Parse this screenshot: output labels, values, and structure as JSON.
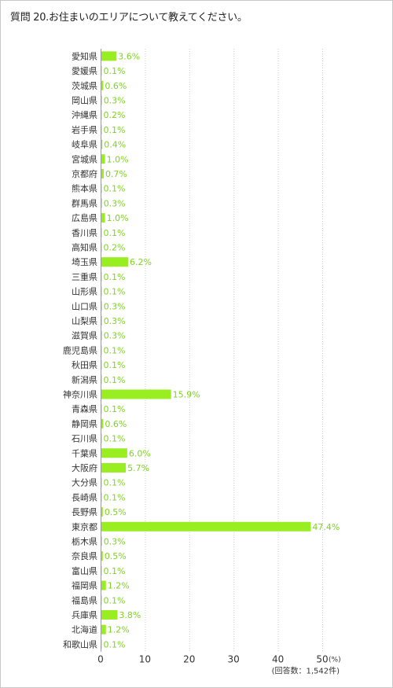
{
  "question": "質問 20.お住まいのエリアについて教えてください。",
  "colors": {
    "bar": "#99ee22",
    "value_label": "#7ed321",
    "grid": "#cccccc",
    "axis": "#999999"
  },
  "chart_data": {
    "type": "bar",
    "orientation": "horizontal",
    "title": "質問 20.お住まいのエリアについて教えてください。",
    "categories": [
      "愛知県",
      "愛媛県",
      "茨城県",
      "岡山県",
      "沖縄県",
      "岩手県",
      "岐阜県",
      "宮城県",
      "京都府",
      "熊本県",
      "群馬県",
      "広島県",
      "香川県",
      "高知県",
      "埼玉県",
      "三重県",
      "山形県",
      "山口県",
      "山梨県",
      "滋賀県",
      "鹿児島県",
      "秋田県",
      "新潟県",
      "神奈川県",
      "青森県",
      "静岡県",
      "石川県",
      "千葉県",
      "大阪府",
      "大分県",
      "長崎県",
      "長野県",
      "東京都",
      "栃木県",
      "奈良県",
      "富山県",
      "福岡県",
      "福島県",
      "兵庫県",
      "北海道",
      "和歌山県"
    ],
    "values": [
      3.6,
      0.1,
      0.6,
      0.3,
      0.2,
      0.1,
      0.4,
      1.0,
      0.7,
      0.1,
      0.3,
      1.0,
      0.1,
      0.2,
      6.2,
      0.1,
      0.1,
      0.3,
      0.3,
      0.3,
      0.1,
      0.1,
      0.1,
      15.9,
      0.1,
      0.6,
      0.1,
      6.0,
      5.7,
      0.1,
      0.1,
      0.5,
      47.4,
      0.3,
      0.5,
      0.1,
      1.2,
      0.1,
      3.8,
      1.2,
      0.1
    ],
    "value_labels": [
      "3.6%",
      "0.1%",
      "0.6%",
      "0.3%",
      "0.2%",
      "0.1%",
      "0.4%",
      "1.0%",
      "0.7%",
      "0.1%",
      "0.3%",
      "1.0%",
      "0.1%",
      "0.2%",
      "6.2%",
      "0.1%",
      "0.1%",
      "0.3%",
      "0.3%",
      "0.3%",
      "0.1%",
      "0.1%",
      "0.1%",
      "15.9%",
      "0.1%",
      "0.6%",
      "0.1%",
      "6.0%",
      "5.7%",
      "0.1%",
      "0.1%",
      "0.5%",
      "47.4%",
      "0.3%",
      "0.5%",
      "0.1%",
      "1.2%",
      "0.1%",
      "3.8%",
      "1.2%",
      "0.1%"
    ],
    "xlim": [
      0,
      50
    ],
    "xticks": [
      0,
      10,
      20,
      30,
      40,
      50
    ],
    "x_unit": "(%)",
    "grid": true,
    "footnote": "(回答数：1,542件)"
  }
}
